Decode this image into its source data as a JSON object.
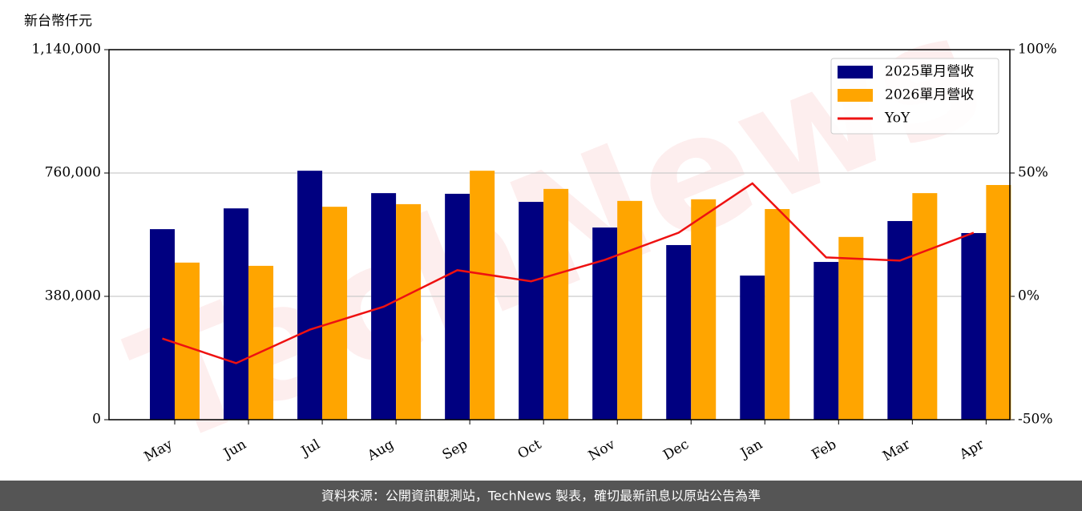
{
  "chart_data": {
    "type": "bar",
    "ylabel": "新台幣仟元",
    "categories": [
      "May",
      "Jun",
      "Jul",
      "Aug",
      "Sep",
      "Oct",
      "Nov",
      "Dec",
      "Jan",
      "Feb",
      "Mar",
      "Apr"
    ],
    "series": [
      {
        "name": "2025單月營收",
        "color": "#000080",
        "values": [
          587000,
          651000,
          767000,
          698000,
          696000,
          671000,
          592000,
          538000,
          444000,
          486000,
          612000,
          575000
        ]
      },
      {
        "name": "2026單月營收",
        "color": "#ffa500",
        "values": [
          484000,
          474000,
          656000,
          664000,
          767000,
          711000,
          674000,
          679000,
          649000,
          563000,
          698000,
          723000
        ]
      },
      {
        "name": "YoY",
        "color": "#ee1111",
        "axis": "y2",
        "values": [
          -17.1,
          -27.1,
          -13.5,
          -4.2,
          10.6,
          6.1,
          14.8,
          25.8,
          45.8,
          15.8,
          14.5,
          25.8
        ]
      }
    ],
    "ylim": [
      0,
      1140000
    ],
    "yticks": [
      {
        "value": 0,
        "label": "0"
      },
      {
        "value": 380000,
        "label": "380,000"
      },
      {
        "value": 760000,
        "label": "760,000"
      },
      {
        "value": 1140000,
        "label": "1,140,000"
      }
    ],
    "y2lim": [
      -50,
      100
    ],
    "y2ticks": [
      {
        "value": -50,
        "label": "-50%"
      },
      {
        "value": 0,
        "label": "0%"
      },
      {
        "value": 50,
        "label": "50%"
      },
      {
        "value": 100,
        "label": "100%"
      }
    ],
    "grid": true,
    "legend": "upper-right",
    "watermark": "TechNews"
  },
  "footer": "資料來源：公開資訊觀測站，TechNews 製表，確切最新訊息以原站公告為準"
}
